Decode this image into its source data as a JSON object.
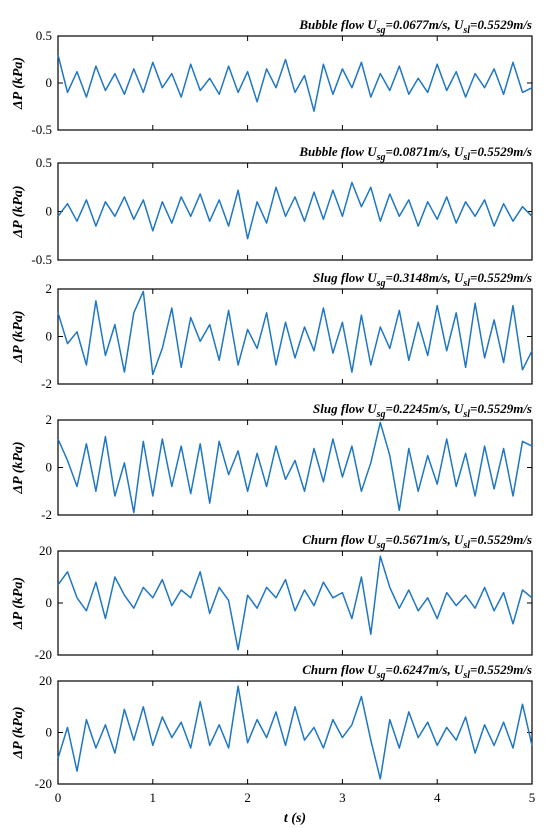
{
  "figure": {
    "xlabel": "t (s)",
    "xticks": [
      "0",
      "1",
      "2",
      "3",
      "4",
      "5"
    ]
  },
  "chart_data": [
    {
      "type": "line",
      "title_regime": "Bubble flow",
      "title_usg": "0.0677m/s",
      "title_usl": "0.5529m/s",
      "ylabel": "ΔP (kPa)",
      "xlim": [
        0,
        5
      ],
      "ylim": [
        -0.5,
        0.5
      ],
      "yticks": [
        "0.5",
        "0",
        "-0.5"
      ],
      "line_color": "#1f77c4",
      "series": [
        {
          "x": [
            0,
            0.1,
            0.2,
            0.3,
            0.4,
            0.5,
            0.6,
            0.7,
            0.8,
            0.9,
            1.0,
            1.1,
            1.2,
            1.3,
            1.4,
            1.5,
            1.6,
            1.7,
            1.8,
            1.9,
            2.0,
            2.1,
            2.2,
            2.3,
            2.4,
            2.5,
            2.6,
            2.7,
            2.8,
            2.9,
            3.0,
            3.1,
            3.2,
            3.3,
            3.4,
            3.5,
            3.6,
            3.7,
            3.8,
            3.9,
            4.0,
            4.1,
            4.2,
            4.3,
            4.4,
            4.5,
            4.6,
            4.7,
            4.8,
            4.9,
            5.0
          ],
          "values": [
            0.3,
            -0.1,
            0.12,
            -0.15,
            0.18,
            -0.08,
            0.1,
            -0.12,
            0.15,
            -0.1,
            0.22,
            -0.05,
            0.1,
            -0.15,
            0.2,
            -0.08,
            0.05,
            -0.12,
            0.18,
            -0.1,
            0.12,
            -0.2,
            0.15,
            -0.05,
            0.25,
            -0.1,
            0.08,
            -0.3,
            0.2,
            -0.12,
            0.15,
            -0.05,
            0.22,
            -0.15,
            0.1,
            -0.08,
            0.18,
            -0.12,
            0.05,
            -0.1,
            0.2,
            -0.08,
            0.12,
            -0.15,
            0.1,
            -0.05,
            0.15,
            -0.12,
            0.22,
            -0.1,
            -0.05
          ]
        }
      ]
    },
    {
      "type": "line",
      "title_regime": "Bubble flow",
      "title_usg": "0.0871m/s",
      "title_usl": "0.5529m/s",
      "ylabel": "ΔP (kPa)",
      "xlim": [
        0,
        5
      ],
      "ylim": [
        -0.5,
        0.5
      ],
      "yticks": [
        "0.5",
        "0",
        "-0.5"
      ],
      "line_color": "#1f77c4",
      "series": [
        {
          "x": [
            0,
            0.1,
            0.2,
            0.3,
            0.4,
            0.5,
            0.6,
            0.7,
            0.8,
            0.9,
            1.0,
            1.1,
            1.2,
            1.3,
            1.4,
            1.5,
            1.6,
            1.7,
            1.8,
            1.9,
            2.0,
            2.1,
            2.2,
            2.3,
            2.4,
            2.5,
            2.6,
            2.7,
            2.8,
            2.9,
            3.0,
            3.1,
            3.2,
            3.3,
            3.4,
            3.5,
            3.6,
            3.7,
            3.8,
            3.9,
            4.0,
            4.1,
            4.2,
            4.3,
            4.4,
            4.5,
            4.6,
            4.7,
            4.8,
            4.9,
            5.0
          ],
          "values": [
            -0.05,
            0.08,
            -0.1,
            0.12,
            -0.15,
            0.1,
            -0.05,
            0.15,
            -0.08,
            0.12,
            -0.2,
            0.1,
            -0.12,
            0.15,
            -0.05,
            0.18,
            -0.1,
            0.12,
            -0.15,
            0.22,
            -0.28,
            0.1,
            -0.12,
            0.25,
            -0.05,
            0.15,
            -0.1,
            0.2,
            -0.08,
            0.22,
            -0.05,
            0.3,
            0.05,
            0.25,
            -0.1,
            0.18,
            -0.05,
            0.12,
            -0.15,
            0.1,
            -0.08,
            0.15,
            -0.12,
            0.1,
            -0.05,
            0.12,
            -0.15,
            0.08,
            -0.1,
            0.05,
            -0.05
          ]
        }
      ]
    },
    {
      "type": "line",
      "title_regime": "Slug flow",
      "title_usg": "0.3148m/s",
      "title_usl": "0.5529m/s",
      "ylabel": "ΔP (kPa)",
      "xlim": [
        0,
        5
      ],
      "ylim": [
        -2,
        2
      ],
      "yticks": [
        "2",
        "0",
        "-2"
      ],
      "line_color": "#1f77c4",
      "series": [
        {
          "x": [
            0,
            0.1,
            0.2,
            0.3,
            0.4,
            0.5,
            0.6,
            0.7,
            0.8,
            0.9,
            1.0,
            1.1,
            1.2,
            1.3,
            1.4,
            1.5,
            1.6,
            1.7,
            1.8,
            1.9,
            2.0,
            2.1,
            2.2,
            2.3,
            2.4,
            2.5,
            2.6,
            2.7,
            2.8,
            2.9,
            3.0,
            3.1,
            3.2,
            3.3,
            3.4,
            3.5,
            3.6,
            3.7,
            3.8,
            3.9,
            4.0,
            4.1,
            4.2,
            4.3,
            4.4,
            4.5,
            4.6,
            4.7,
            4.8,
            4.9,
            5.0
          ],
          "values": [
            1.0,
            -0.3,
            0.2,
            -1.2,
            1.5,
            -0.8,
            0.5,
            -1.5,
            1.0,
            1.9,
            -1.6,
            -0.5,
            1.2,
            -1.3,
            0.8,
            -0.2,
            0.5,
            -1.0,
            1.1,
            -1.2,
            0.3,
            -0.5,
            1.0,
            -1.2,
            0.6,
            -0.9,
            0.4,
            -0.6,
            1.2,
            -0.7,
            0.6,
            -1.5,
            0.9,
            -1.2,
            0.4,
            -0.5,
            1.1,
            -1.0,
            0.6,
            -0.8,
            1.3,
            -0.6,
            1.0,
            -1.3,
            1.4,
            -0.9,
            0.7,
            -1.1,
            1.3,
            -1.4,
            -0.6
          ]
        }
      ]
    },
    {
      "type": "line",
      "title_regime": "Slug flow",
      "title_usg": "0.2245m/s",
      "title_usl": "0.5529m/s",
      "ylabel": "ΔP (kPa)",
      "xlim": [
        0,
        5
      ],
      "ylim": [
        -2,
        2
      ],
      "yticks": [
        "2",
        "0",
        "-2"
      ],
      "line_color": "#1f77c4",
      "series": [
        {
          "x": [
            0,
            0.1,
            0.2,
            0.3,
            0.4,
            0.5,
            0.6,
            0.7,
            0.8,
            0.9,
            1.0,
            1.1,
            1.2,
            1.3,
            1.4,
            1.5,
            1.6,
            1.7,
            1.8,
            1.9,
            2.0,
            2.1,
            2.2,
            2.3,
            2.4,
            2.5,
            2.6,
            2.7,
            2.8,
            2.9,
            3.0,
            3.1,
            3.2,
            3.3,
            3.4,
            3.5,
            3.6,
            3.7,
            3.8,
            3.9,
            4.0,
            4.1,
            4.2,
            4.3,
            4.4,
            4.5,
            4.6,
            4.7,
            4.8,
            4.9,
            5.0
          ],
          "values": [
            1.2,
            0.3,
            -0.8,
            1.0,
            -1.0,
            1.3,
            -1.2,
            0.2,
            -1.9,
            1.1,
            -1.2,
            1.2,
            -0.8,
            0.9,
            -1.1,
            1.0,
            -1.5,
            1.1,
            -0.3,
            0.7,
            -1.0,
            0.6,
            -0.8,
            0.9,
            -0.5,
            0.3,
            -1.0,
            0.8,
            -0.6,
            1.2,
            -0.4,
            0.9,
            -1.0,
            0.2,
            1.9,
            0.5,
            -1.8,
            0.8,
            -1.0,
            0.5,
            -0.7,
            1.2,
            -0.8,
            0.6,
            -1.2,
            0.9,
            -0.9,
            0.8,
            -1.2,
            1.1,
            0.9
          ]
        }
      ]
    },
    {
      "type": "line",
      "title_regime": "Churn flow",
      "title_usg": "0.5671m/s",
      "title_usl": "0.5529m/s",
      "ylabel": "ΔP (kPa)",
      "xlim": [
        0,
        5
      ],
      "ylim": [
        -20,
        20
      ],
      "yticks": [
        "20",
        "0",
        "-20"
      ],
      "line_color": "#1f77c4",
      "series": [
        {
          "x": [
            0,
            0.1,
            0.2,
            0.3,
            0.4,
            0.5,
            0.6,
            0.7,
            0.8,
            0.9,
            1.0,
            1.1,
            1.2,
            1.3,
            1.4,
            1.5,
            1.6,
            1.7,
            1.8,
            1.9,
            2.0,
            2.1,
            2.2,
            2.3,
            2.4,
            2.5,
            2.6,
            2.7,
            2.8,
            2.9,
            3.0,
            3.1,
            3.2,
            3.3,
            3.4,
            3.5,
            3.6,
            3.7,
            3.8,
            3.9,
            4.0,
            4.1,
            4.2,
            4.3,
            4.4,
            4.5,
            4.6,
            4.7,
            4.8,
            4.9,
            5.0
          ],
          "values": [
            7,
            12,
            2,
            -3,
            8,
            -6,
            10,
            3,
            -2,
            6,
            2,
            9,
            -1,
            5,
            2,
            12,
            -4,
            6,
            1,
            -18,
            3,
            -2,
            6,
            2,
            9,
            -3,
            5,
            -1,
            8,
            2,
            4,
            -6,
            10,
            -12,
            18,
            6,
            -2,
            5,
            -3,
            2,
            -6,
            4,
            -1,
            3,
            -2,
            6,
            -3,
            4,
            -8,
            5,
            2
          ]
        }
      ]
    },
    {
      "type": "line",
      "title_regime": "Churn flow",
      "title_usg": "0.6247m/s",
      "title_usl": "0.5529m/s",
      "ylabel": "ΔP (kPa)",
      "xlim": [
        0,
        5
      ],
      "ylim": [
        -20,
        20
      ],
      "yticks": [
        "20",
        "0",
        "-20"
      ],
      "line_color": "#1f77c4",
      "series": [
        {
          "x": [
            0,
            0.1,
            0.2,
            0.3,
            0.4,
            0.5,
            0.6,
            0.7,
            0.8,
            0.9,
            1.0,
            1.1,
            1.2,
            1.3,
            1.4,
            1.5,
            1.6,
            1.7,
            1.8,
            1.9,
            2.0,
            2.1,
            2.2,
            2.3,
            2.4,
            2.5,
            2.6,
            2.7,
            2.8,
            2.9,
            3.0,
            3.1,
            3.2,
            3.3,
            3.4,
            3.5,
            3.6,
            3.7,
            3.8,
            3.9,
            4.0,
            4.1,
            4.2,
            4.3,
            4.4,
            4.5,
            4.6,
            4.7,
            4.8,
            4.9,
            5.0
          ],
          "values": [
            -10,
            2,
            -15,
            5,
            -6,
            3,
            -8,
            9,
            -3,
            10,
            -5,
            6,
            -2,
            4,
            -6,
            12,
            -5,
            3,
            -6,
            18,
            -4,
            5,
            -2,
            8,
            -5,
            10,
            -3,
            2,
            -6,
            5,
            -2,
            3,
            14,
            -3,
            -18,
            5,
            -6,
            8,
            -2,
            4,
            -5,
            2,
            -3,
            6,
            -8,
            3,
            -5,
            4,
            -6,
            11,
            -5
          ]
        }
      ]
    }
  ]
}
